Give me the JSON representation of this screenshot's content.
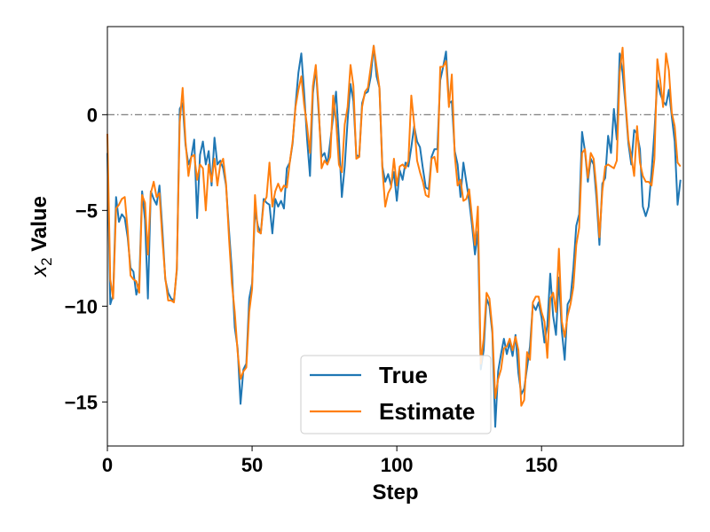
{
  "chart_data": {
    "type": "line",
    "title": "",
    "xlabel": "Step",
    "ylabel_var": "x",
    "ylabel_sub": "2",
    "ylabel_rest": " Value",
    "xlim": [
      0,
      199
    ],
    "ylim": [
      -17.3,
      4.6
    ],
    "xticks": [
      0,
      50,
      100,
      150
    ],
    "xtick_labels": [
      "0",
      "50",
      "100",
      "150"
    ],
    "yticks": [
      0,
      -5,
      -10,
      -15
    ],
    "ytick_labels": [
      "0",
      "−5",
      "−10",
      "−15"
    ],
    "reference_line": 0,
    "legend_position": "lower-center",
    "grid": false,
    "series": [
      {
        "name": "True",
        "color": "#1f77b4",
        "values": [
          -2.0,
          -9.9,
          -9.4,
          -4.3,
          -5.6,
          -5.2,
          -5.4,
          -6.4,
          -8.0,
          -8.2,
          -9.4,
          -8.8,
          -4.0,
          -5.5,
          -9.6,
          -4.0,
          -4.4,
          -4.7,
          -3.7,
          -6.0,
          -8.6,
          -9.3,
          -9.6,
          -9.7,
          -8.1,
          0.3,
          0.6,
          -1.6,
          -2.6,
          -2.2,
          -1.3,
          -5.4,
          -2.1,
          -1.4,
          -2.6,
          -1.9,
          -3.7,
          -1.2,
          -2.6,
          -2.4,
          -2.8,
          -3.7,
          -6.0,
          -8.1,
          -11.1,
          -12.2,
          -15.1,
          -13.3,
          -13.0,
          -9.6,
          -8.8,
          -5.0,
          -5.8,
          -6.2,
          -4.4,
          -4.6,
          -4.7,
          -6.2,
          -4.4,
          -4.8,
          -4.5,
          -4.9,
          -2.8,
          -2.5,
          -1.5,
          0.5,
          2.2,
          3.2,
          1.1,
          -1.3,
          -3.2,
          1.1,
          2.5,
          0.1,
          -2.2,
          -2.0,
          -2.6,
          -1.4,
          -0.1,
          1.2,
          -1.3,
          -4.3,
          -2.7,
          -0.3,
          1.6,
          0.7,
          -2.1,
          -2.2,
          0.6,
          1.1,
          1.2,
          2.0,
          3.6,
          2.0,
          1.4,
          -2.7,
          -3.5,
          -3.1,
          -3.7,
          -3.0,
          -4.5,
          -2.9,
          -3.4,
          -2.5,
          -2.7,
          -1.7,
          -0.6,
          -1.4,
          -1.7,
          -2.8,
          -3.8,
          -3.9,
          -2.2,
          -1.8,
          -1.8,
          1.8,
          2.5,
          3.3,
          0.6,
          0.7,
          -1.9,
          -2.6,
          -4.3,
          -2.5,
          -3.5,
          -4.5,
          -5.8,
          -7.3,
          -6.1,
          -13.3,
          -12.3,
          -9.6,
          -10.0,
          -11.4,
          -16.3,
          -13.4,
          -12.5,
          -11.7,
          -12.5,
          -11.9,
          -12.6,
          -11.5,
          -13.5,
          -14.6,
          -14.3,
          -13.2,
          -12.1,
          -9.9,
          -10.2,
          -9.8,
          -10.6,
          -11.9,
          -11.0,
          -8.3,
          -10.5,
          -11.5,
          -8.5,
          -11.3,
          -12.8,
          -9.9,
          -9.6,
          -8.0,
          -5.8,
          -5.2,
          -0.9,
          -1.9,
          -3.5,
          -2.3,
          -2.6,
          -4.4,
          -6.8,
          -3.6,
          -3.3,
          -1.1,
          -2.0,
          0.3,
          -1.3,
          3.2,
          2.2,
          0.5,
          -1.5,
          -2.6,
          -0.8,
          -1.0,
          -1.8,
          -4.8,
          -5.3,
          -4.8,
          -3.0,
          -0.9,
          1.8,
          1.1,
          0.7,
          0.5,
          1.3,
          -0.1,
          -1.4,
          -4.7,
          -3.4
        ]
      },
      {
        "name": "Estimate",
        "color": "#ff7f0e",
        "values": [
          -1.0,
          -8.6,
          -9.6,
          -4.9,
          -4.7,
          -4.4,
          -4.3,
          -6.0,
          -8.4,
          -8.6,
          -8.7,
          -9.3,
          -4.2,
          -4.6,
          -7.3,
          -4.1,
          -3.5,
          -4.3,
          -4.1,
          -6.5,
          -8.5,
          -9.7,
          -9.7,
          -9.8,
          -8.0,
          -0.4,
          1.4,
          -1.4,
          -3.2,
          -2.2,
          -2.1,
          -3.4,
          -2.6,
          -2.8,
          -5.0,
          -2.6,
          -3.5,
          -2.3,
          -3.7,
          -2.6,
          -2.3,
          -3.6,
          -6.4,
          -8.8,
          -10.3,
          -12.4,
          -13.8,
          -13.4,
          -13.2,
          -10.3,
          -9.1,
          -4.2,
          -6.1,
          -6.2,
          -4.6,
          -4.3,
          -2.5,
          -4.8,
          -4.0,
          -3.6,
          -4.0,
          -3.7,
          -3.8,
          -2.5,
          -1.4,
          0.4,
          1.3,
          2.0,
          0.5,
          -0.6,
          -2.0,
          1.5,
          2.6,
          0.4,
          -2.8,
          -2.4,
          -2.6,
          -2.2,
          1.0,
          -0.3,
          -2.6,
          -3.0,
          -0.5,
          0.4,
          2.6,
          1.5,
          -2.3,
          -2.2,
          0.4,
          1.2,
          1.4,
          2.5,
          3.6,
          2.5,
          1.4,
          -2.8,
          -4.8,
          -4.1,
          -3.8,
          -2.3,
          -3.7,
          -2.7,
          -2.6,
          -2.8,
          -2.4,
          1.0,
          -0.5,
          -2.4,
          -3.0,
          -3.5,
          -4.2,
          -4.3,
          -2.3,
          -2.2,
          -3.0,
          2.5,
          2.5,
          2.8,
          0.4,
          2.1,
          -2.1,
          -3.7,
          -3.4,
          -4.5,
          -4.4,
          -3.9,
          -5.4,
          -6.8,
          -4.8,
          -13.0,
          -11.7,
          -9.3,
          -9.6,
          -11.2,
          -14.8,
          -13.8,
          -13.3,
          -12.2,
          -12.1,
          -11.7,
          -12.3,
          -11.6,
          -12.3,
          -15.2,
          -14.9,
          -12.4,
          -12.8,
          -9.8,
          -9.5,
          -9.5,
          -10.3,
          -10.8,
          -12.7,
          -9.6,
          -9.3,
          -10.3,
          -7.0,
          -10.8,
          -11.6,
          -10.5,
          -9.9,
          -9.0,
          -6.8,
          -5.9,
          -2.0,
          -1.8,
          -3.3,
          -2.0,
          -2.3,
          -3.9,
          -6.4,
          -4.0,
          -2.7,
          -2.6,
          -2.7,
          -2.8,
          -2.4,
          2.2,
          3.5,
          0.7,
          -1.3,
          -2.2,
          -3.2,
          -0.6,
          -2.5,
          -3.2,
          -3.5,
          -3.5,
          -3.7,
          -2.3,
          2.9,
          1.8,
          0.4,
          3.2,
          2.3,
          0.1,
          -0.6,
          -2.5,
          -2.7
        ]
      }
    ]
  }
}
